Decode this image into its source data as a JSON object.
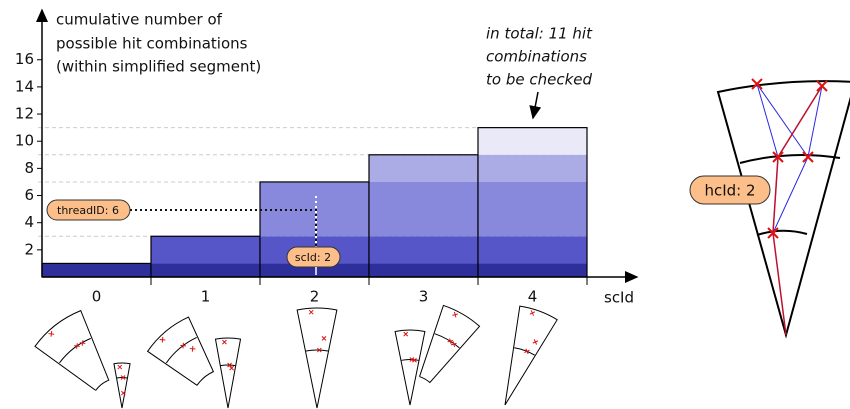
{
  "chart_data": {
    "type": "bar",
    "y_label": [
      "cumulative number of",
      "possible hit combinations",
      "(within simplified segment)"
    ],
    "annotation": [
      "in total: 11 hit",
      "combinations",
      "to be checked"
    ],
    "x_label": "scId",
    "categories": [
      "0",
      "1",
      "2",
      "3",
      "4"
    ],
    "values": [
      1,
      3,
      7,
      9,
      11
    ],
    "colors": [
      "#2f2f9c",
      "#5656c9",
      "#8888dd",
      "#ababe6",
      "#e9e9f8"
    ],
    "ylim": [
      0,
      19
    ],
    "yticks": [
      2,
      4,
      6,
      8,
      10,
      12,
      14,
      16
    ],
    "labels": {
      "thread": "threadID: 6",
      "sc": "scId: 2",
      "hc": "hcId: 2"
    }
  }
}
